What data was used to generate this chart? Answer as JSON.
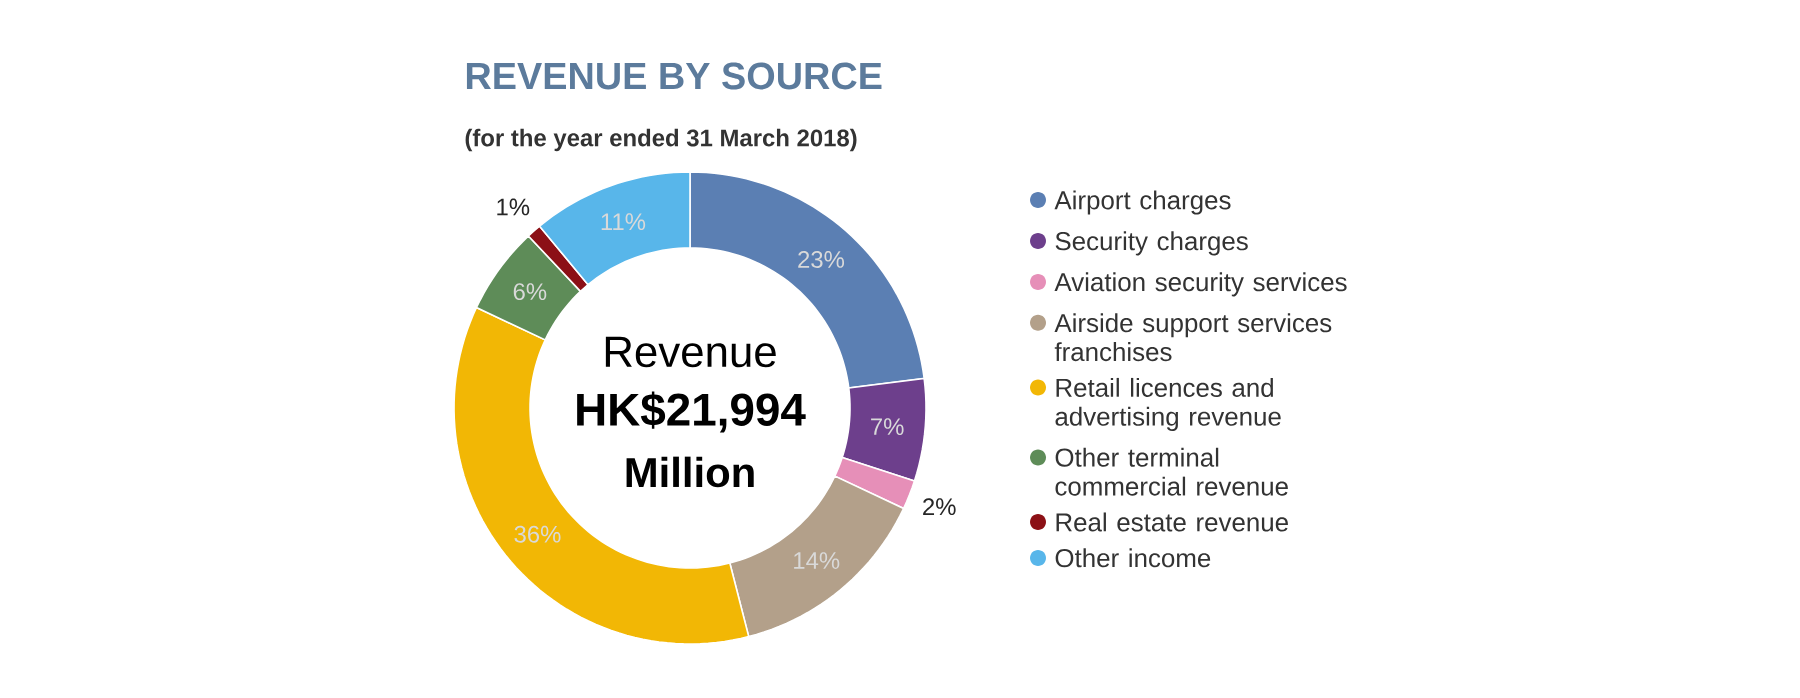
{
  "chart_data": {
    "type": "donut",
    "title": "REVENUE BY SOURCE",
    "subtitle": "(for the year ended 31 March 2018)",
    "categories": [
      "Airport charges",
      "Security charges",
      "Aviation security services",
      "Airside support services franchises",
      "Retail licences and advertising revenue",
      "Other terminal commercial revenue",
      "Real estate revenue",
      "Other income"
    ],
    "values": [
      23,
      7,
      2,
      14,
      36,
      6,
      1,
      11
    ],
    "value_labels": [
      "23%",
      "7%",
      "2%",
      "14%",
      "36%",
      "6%",
      "1%",
      "11%"
    ],
    "colors": [
      "#5b7fb3",
      "#6d3f8c",
      "#e68fb8",
      "#b3a08a",
      "#f2b705",
      "#5e8c58",
      "#8c1016",
      "#58b6ea"
    ],
    "annotations": [
      "Revenue",
      "HK$21,994",
      "Million"
    ],
    "legend": "right"
  }
}
